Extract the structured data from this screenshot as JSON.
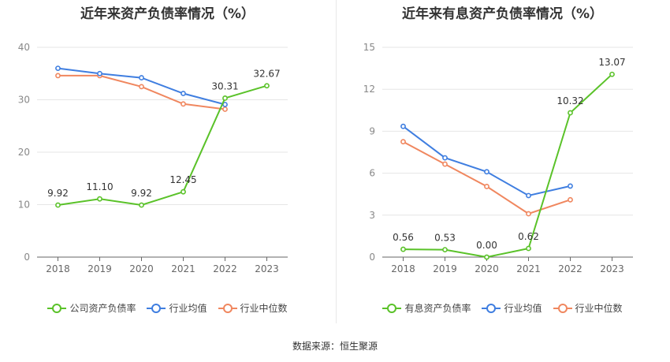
{
  "footer": "数据来源：恒生聚源",
  "chart_data": [
    {
      "type": "line",
      "title": "近年来资产负债率情况（%）",
      "categories": [
        "2018",
        "2019",
        "2020",
        "2021",
        "2022",
        "2023"
      ],
      "ylim": [
        0,
        40
      ],
      "yticks": [
        0,
        10,
        20,
        30,
        40
      ],
      "grid": true,
      "legend_position": "bottom",
      "series": [
        {
          "name": "公司资产负债率",
          "color": "#5ac229",
          "values": [
            9.92,
            11.1,
            9.92,
            12.45,
            30.31,
            32.67
          ],
          "labels": [
            "9.92",
            "11.10",
            "9.92",
            "12.45",
            "30.31",
            "32.67"
          ]
        },
        {
          "name": "行业均值",
          "color": "#3f7ee0",
          "values": [
            36.0,
            35.0,
            34.2,
            31.2,
            29.1,
            null
          ],
          "labels": []
        },
        {
          "name": "行业中位数",
          "color": "#f0875f",
          "values": [
            34.6,
            34.6,
            32.5,
            29.2,
            28.2,
            null
          ],
          "labels": []
        }
      ]
    },
    {
      "type": "line",
      "title": "近年来有息资产负债率情况（%）",
      "categories": [
        "2018",
        "2019",
        "2020",
        "2021",
        "2022",
        "2023"
      ],
      "ylim": [
        0,
        15
      ],
      "yticks": [
        0,
        3,
        6,
        9,
        12,
        15
      ],
      "grid": true,
      "legend_position": "bottom",
      "series": [
        {
          "name": "有息资产负债率",
          "color": "#5ac229",
          "values": [
            0.56,
            0.53,
            0.0,
            0.62,
            10.32,
            13.07
          ],
          "labels": [
            "0.56",
            "0.53",
            "0.00",
            "0.62",
            "10.32",
            "13.07"
          ]
        },
        {
          "name": "行业均值",
          "color": "#3f7ee0",
          "values": [
            9.35,
            7.1,
            6.1,
            4.4,
            5.08,
            null
          ],
          "labels": []
        },
        {
          "name": "行业中位数",
          "color": "#f0875f",
          "values": [
            8.25,
            6.65,
            5.05,
            3.1,
            4.1,
            null
          ],
          "labels": []
        }
      ]
    }
  ]
}
